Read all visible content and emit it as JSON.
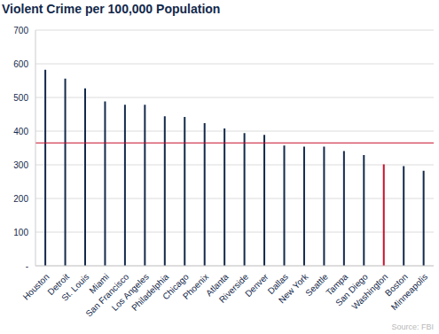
{
  "chart_data": {
    "type": "bar",
    "title": "Violent Crime per 100,000 Population",
    "source": "Source: FBI",
    "categories": [
      "Houston",
      "Detroit",
      "St. Louis",
      "Miami",
      "San Francisco",
      "Los Angeles",
      "Philadelphia",
      "Chicago",
      "Phoenix",
      "Atlanta",
      "Riverside",
      "Denver",
      "Dallas",
      "New York",
      "Seattle",
      "Tampa",
      "San Diego",
      "Washington",
      "Boston",
      "Minneapolis"
    ],
    "values": [
      582,
      556,
      527,
      488,
      478,
      478,
      444,
      442,
      424,
      408,
      394,
      389,
      357,
      354,
      354,
      341,
      329,
      301,
      296,
      282
    ],
    "colors": [
      "#13294b",
      "#13294b",
      "#13294b",
      "#13294b",
      "#13294b",
      "#13294b",
      "#13294b",
      "#13294b",
      "#13294b",
      "#13294b",
      "#13294b",
      "#13294b",
      "#13294b",
      "#13294b",
      "#13294b",
      "#13294b",
      "#13294b",
      "#c8102e",
      "#13294b",
      "#13294b"
    ],
    "ylim": [
      0,
      700
    ],
    "yticks": [
      {
        "value": 0,
        "label": "-"
      },
      100,
      200,
      300,
      400,
      500,
      600,
      700
    ],
    "reference_line": {
      "value": 365,
      "color": "#c8102e"
    },
    "grid": true
  }
}
